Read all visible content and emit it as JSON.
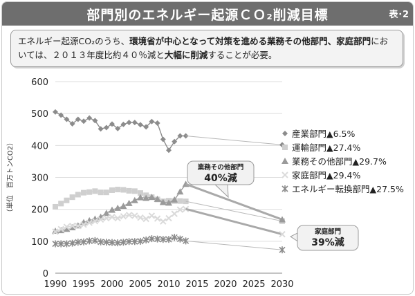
{
  "header": {
    "title": "部門別のエネルギー起源ＣＯ₂削減目標",
    "tag": "表･2"
  },
  "note": {
    "parts": [
      {
        "t": "エネルギー起源CO₂のうち、",
        "b": false
      },
      {
        "t": "環境省が中心となって対策を進める業務その他部門、家庭部門",
        "b": true
      },
      {
        "t": "においては、２０１３年度比約４０％減と",
        "b": false
      },
      {
        "t": "大幅に削減",
        "b": true
      },
      {
        "t": "することが必要。",
        "b": false
      }
    ]
  },
  "colors": {
    "industry": "#8c8c8c",
    "transport": "#cfcfcf",
    "commercial": "#9a9a9a",
    "household": "#dadada",
    "energy": "#8a8a8a",
    "arrow": "#a9a9a9"
  },
  "callouts": [
    {
      "label": "業務その他部門",
      "value": "40%減"
    },
    {
      "label": "家庭部門",
      "value": "39%減"
    }
  ],
  "chart_data": {
    "type": "line",
    "ylabel": "（単位　百万トンCO2）",
    "xlim": [
      1990,
      2030
    ],
    "ylim": [
      0,
      600
    ],
    "xticks": [
      1990,
      1995,
      2000,
      2005,
      2010,
      2015,
      2020,
      2025,
      2030
    ],
    "yticks": [
      0,
      100,
      200,
      300,
      400,
      500,
      600
    ],
    "x": [
      1990,
      1991,
      1992,
      1993,
      1994,
      1995,
      1996,
      1997,
      1998,
      1999,
      2000,
      2001,
      2002,
      2003,
      2004,
      2005,
      2006,
      2007,
      2008,
      2009,
      2010,
      2011,
      2012,
      2013
    ],
    "series": [
      {
        "name": "産業部門▲6.5%",
        "key": "industry",
        "marker": "diamond",
        "values": [
          505,
          495,
          482,
          468,
          482,
          476,
          486,
          478,
          452,
          456,
          467,
          453,
          466,
          472,
          472,
          465,
          458,
          475,
          470,
          419,
          385,
          412,
          430,
          430
        ],
        "target": [
          2030,
          402
        ]
      },
      {
        "name": "運輸部門▲27.4%",
        "key": "transport",
        "marker": "square",
        "values": [
          208,
          218,
          228,
          238,
          246,
          252,
          254,
          257,
          253,
          253,
          260,
          262,
          261,
          258,
          257,
          251,
          244,
          238,
          231,
          225,
          227,
          226,
          226,
          225
        ],
        "target": [
          2030,
          163
        ]
      },
      {
        "name": "業務その他部門▲29.7%",
        "key": "commercial",
        "marker": "triangle",
        "values": [
          132,
          134,
          138,
          143,
          149,
          159,
          165,
          170,
          176,
          188,
          198,
          204,
          210,
          219,
          228,
          237,
          235,
          238,
          232,
          222,
          220,
          230,
          255,
          279
        ],
        "target": [
          2030,
          168
        ]
      },
      {
        "name": "家庭部門▲29.4%",
        "key": "household",
        "marker": "x",
        "values": [
          130,
          138,
          145,
          148,
          148,
          152,
          158,
          163,
          168,
          172,
          176,
          172,
          178,
          182,
          180,
          174,
          170,
          180,
          171,
          162,
          172,
          186,
          199,
          201
        ],
        "target": [
          2030,
          122
        ]
      },
      {
        "name": "エネルギー転換部門▲27.5%",
        "key": "energy",
        "marker": "star",
        "values": [
          92,
          92,
          92,
          94,
          97,
          98,
          101,
          102,
          98,
          97,
          96,
          95,
          97,
          99,
          99,
          100,
          104,
          108,
          107,
          106,
          106,
          112,
          107,
          101
        ],
        "target": [
          2030,
          73
        ]
      }
    ]
  }
}
